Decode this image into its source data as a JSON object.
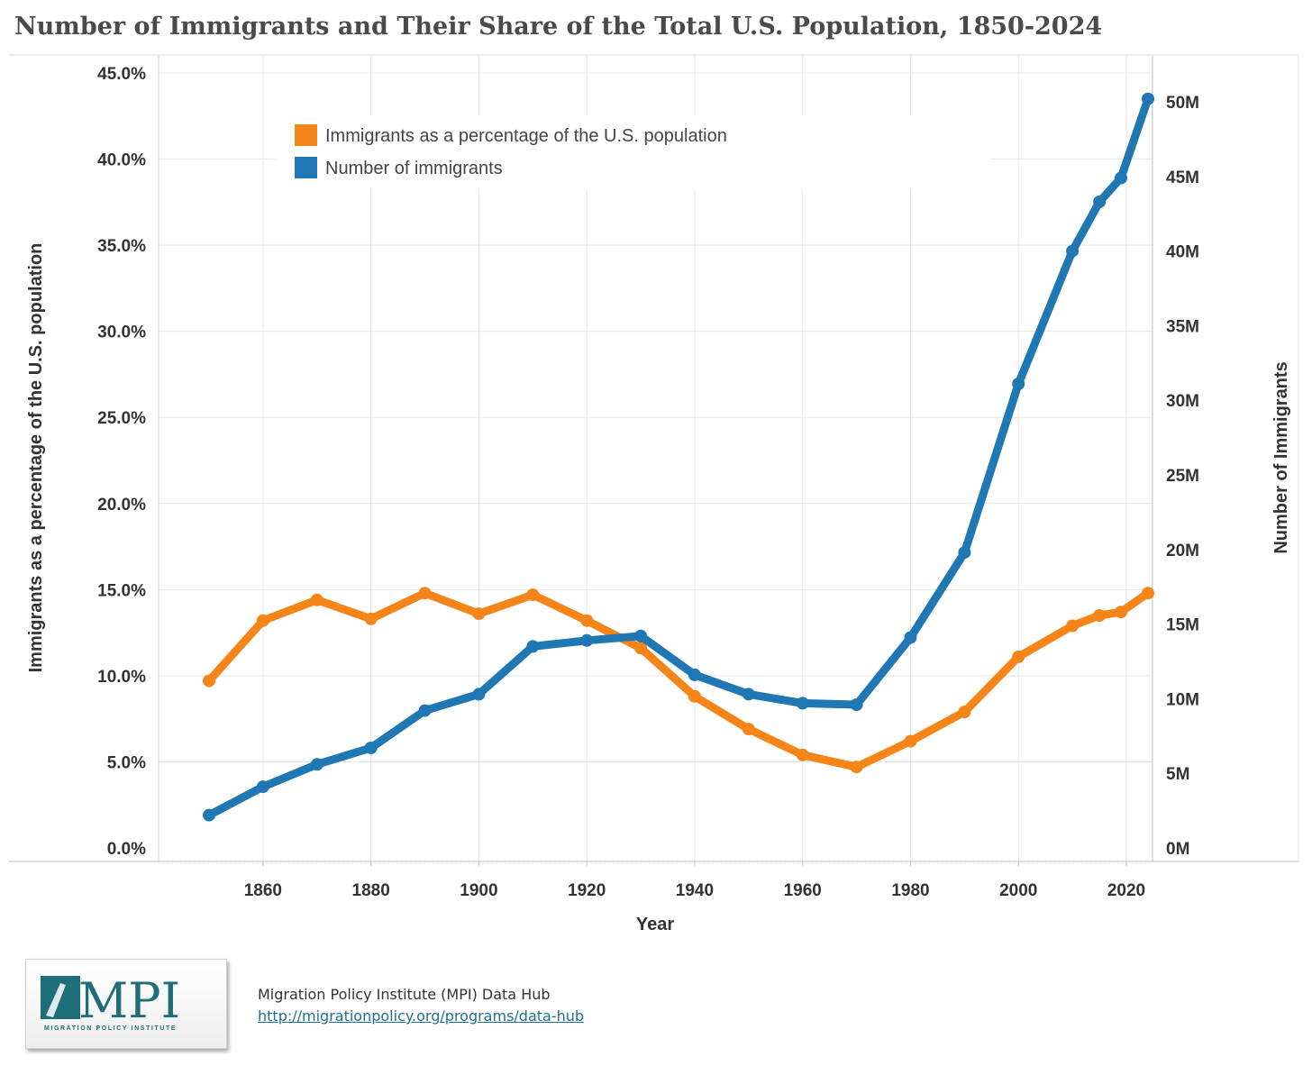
{
  "title": "Number of Immigrants and Their Share of the Total U.S. Population, 1850-2024",
  "legend": {
    "items": [
      {
        "label": "Immigrants as a percentage of the U.S. population",
        "color": "#f58518"
      },
      {
        "label": "Number of immigrants",
        "color": "#1f77b4"
      }
    ]
  },
  "chart_data": {
    "type": "line",
    "title": "Number of Immigrants and Their Share of the Total U.S. Population, 1850-2024",
    "xlabel": "Year",
    "ylabel_left": "Immigrants as a percentage of the U.S. population",
    "ylabel_right": "Number of Immigrants",
    "x_ticks": [
      "1860",
      "1880",
      "1900",
      "1920",
      "1940",
      "1960",
      "1980",
      "2000",
      "2020"
    ],
    "y_left_ticks": [
      "0.0%",
      "5.0%",
      "10.0%",
      "15.0%",
      "20.0%",
      "25.0%",
      "30.0%",
      "35.0%",
      "40.0%",
      "45.0%"
    ],
    "y_right_ticks": [
      "0M",
      "5M",
      "10M",
      "15M",
      "20M",
      "25M",
      "30M",
      "35M",
      "40M",
      "45M",
      "50M"
    ],
    "xlim": [
      1840,
      2024
    ],
    "ylim_left": [
      0,
      45
    ],
    "ylim_right": [
      0,
      52.5
    ],
    "grid": true,
    "legend_position": "top-left",
    "series": [
      {
        "name": "Immigrants as a percentage of the U.S. population",
        "axis": "left",
        "color": "#f58518",
        "x": [
          1850,
          1860,
          1870,
          1880,
          1890,
          1900,
          1910,
          1920,
          1930,
          1940,
          1950,
          1960,
          1970,
          1980,
          1990,
          2000,
          2010,
          2015,
          2019,
          2024
        ],
        "values": [
          9.7,
          13.2,
          14.4,
          13.3,
          14.8,
          13.6,
          14.7,
          13.2,
          11.6,
          8.8,
          6.9,
          5.4,
          4.7,
          6.2,
          7.9,
          11.1,
          12.9,
          13.5,
          13.7,
          14.8
        ]
      },
      {
        "name": "Number of immigrants",
        "axis": "right",
        "color": "#1f77b4",
        "x": [
          1850,
          1860,
          1870,
          1880,
          1890,
          1900,
          1910,
          1920,
          1930,
          1940,
          1950,
          1960,
          1970,
          1980,
          1990,
          2000,
          2010,
          2015,
          2019,
          2024
        ],
        "values": [
          2.2,
          4.1,
          5.6,
          6.7,
          9.2,
          10.3,
          13.5,
          13.9,
          14.2,
          11.6,
          10.3,
          9.7,
          9.6,
          14.1,
          19.8,
          31.1,
          40.0,
          43.3,
          44.9,
          50.2
        ]
      }
    ]
  },
  "footer": {
    "logo_text": "MPI",
    "logo_subtext": "MIGRATION POLICY INSTITUTE",
    "source": "Migration Policy Institute (MPI) Data Hub",
    "url": "http://migrationpolicy.org/programs/data-hub"
  }
}
